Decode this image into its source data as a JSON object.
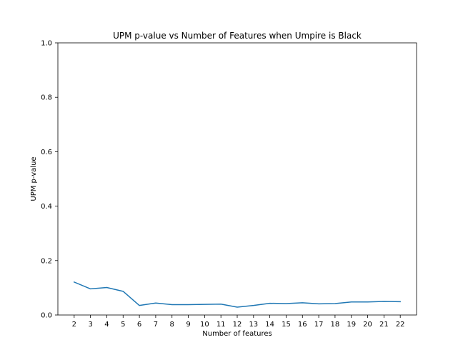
{
  "chart_data": {
    "type": "line",
    "title": "UPM p-value vs Number of Features when Umpire is Black",
    "xlabel": "Number of features",
    "ylabel": "UPM p-value",
    "x": [
      2,
      3,
      4,
      5,
      6,
      7,
      8,
      9,
      10,
      11,
      12,
      13,
      14,
      15,
      16,
      17,
      18,
      19,
      20,
      21,
      22
    ],
    "series": [
      {
        "values": [
          0.121,
          0.096,
          0.101,
          0.087,
          0.035,
          0.044,
          0.038,
          0.038,
          0.039,
          0.04,
          0.029,
          0.035,
          0.043,
          0.042,
          0.045,
          0.041,
          0.042,
          0.048,
          0.048,
          0.05,
          0.049
        ],
        "color": "#1f77b4"
      }
    ],
    "xlim": [
      1,
      23
    ],
    "ylim": [
      0,
      1
    ],
    "xticks": [
      "2",
      "3",
      "4",
      "5",
      "6",
      "7",
      "8",
      "9",
      "10",
      "11",
      "12",
      "13",
      "14",
      "15",
      "16",
      "17",
      "18",
      "19",
      "20",
      "21",
      "22"
    ],
    "yticks": [
      "0.0",
      "0.2",
      "0.4",
      "0.6",
      "0.8",
      "1.0"
    ],
    "grid": false,
    "legend": false
  }
}
